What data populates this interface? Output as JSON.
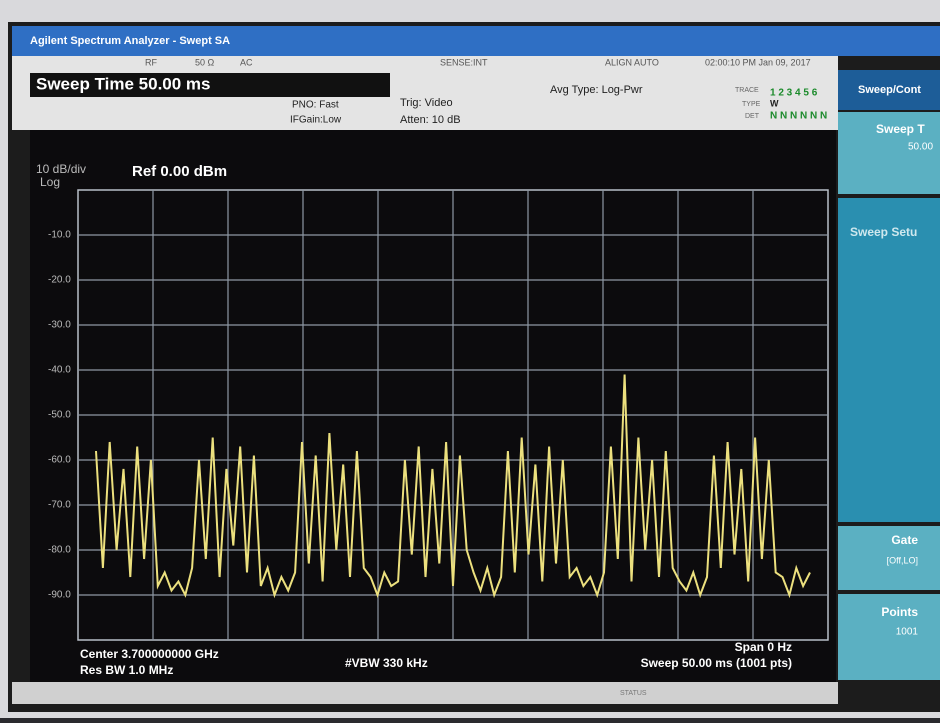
{
  "header": {
    "title": "Agilent Spectrum Analyzer - Swept SA",
    "status": [
      "RF",
      "50 Ω",
      "AC",
      "SENSE:INT",
      "ALIGN AUTO",
      "02:00:10 PM Jan 09, 2017"
    ],
    "sweep_time": "Sweep Time 50.00 ms",
    "pno": "PNO: Fast",
    "if_gain": "IFGain:Low",
    "trig": "Trig: Video",
    "atten": "Atten: 10 dB",
    "avg_type": "Avg Type: Log-Pwr",
    "trace_label": "TRACE",
    "trace_nums": "1 2 3 4 5 6",
    "type_label": "TYPE",
    "type_val": "W",
    "det_label": "DET",
    "det_val": "N N N N N N"
  },
  "display": {
    "scale": "10 dB/div",
    "scale_type": "Log",
    "ref": "Ref 0.00 dBm",
    "ylim": [
      -100,
      0
    ],
    "yticks": [
      {
        "value": -10,
        "label": "-10.0"
      },
      {
        "value": -20,
        "label": "-20.0"
      },
      {
        "value": -30,
        "label": "-30.0"
      },
      {
        "value": -40,
        "label": "-40.0"
      },
      {
        "value": -50,
        "label": "-50.0"
      },
      {
        "value": -60,
        "label": "-60.0"
      },
      {
        "value": -70,
        "label": "-70.0"
      },
      {
        "value": -80,
        "label": "-80.0"
      },
      {
        "value": -90,
        "label": "-90.0"
      }
    ],
    "color": "#ece07e",
    "trace": [
      -58,
      -84,
      -56,
      -80,
      -62,
      -86,
      -57,
      -82,
      -60,
      -88,
      -85,
      -89,
      -87,
      -90,
      -84,
      -60,
      -82,
      -55,
      -86,
      -62,
      -79,
      -57,
      -85,
      -59,
      -88,
      -84,
      -90,
      -86,
      -89,
      -85,
      -56,
      -83,
      -59,
      -87,
      -54,
      -80,
      -61,
      -86,
      -58,
      -84,
      -86,
      -90,
      -85,
      -88,
      -87,
      -60,
      -81,
      -57,
      -86,
      -62,
      -83,
      -56,
      -88,
      -59,
      -80,
      -85,
      -89,
      -84,
      -90,
      -86,
      -58,
      -85,
      -55,
      -81,
      -61,
      -87,
      -57,
      -83,
      -60,
      -86,
      -84,
      -88,
      -86,
      -90,
      -85,
      -57,
      -82,
      -41,
      -87,
      -55,
      -80,
      -60,
      -86,
      -58,
      -84,
      -87,
      -89,
      -85,
      -90,
      -86,
      -59,
      -84,
      -56,
      -81,
      -62,
      -87,
      -55,
      -82,
      -60,
      -85,
      -86,
      -90,
      -84,
      -88,
      -85
    ],
    "center": "Center 3.700000000 GHz",
    "res_bw": "Res BW 1.0 MHz",
    "vbw": "#VBW 330 kHz",
    "span": "Span 0 Hz",
    "sweep": "Sweep  50.00 ms (1001 pts)"
  },
  "softkeys": {
    "menu": "Sweep/Cont",
    "keys": [
      {
        "label": "Sweep T",
        "value": "50.00"
      },
      {
        "label": "Sweep Setu"
      },
      {
        "label": "Gate",
        "value": "[Off,LO]"
      },
      {
        "label": "Points",
        "value": "1001"
      }
    ]
  },
  "footer": {
    "status": "STATUS"
  }
}
